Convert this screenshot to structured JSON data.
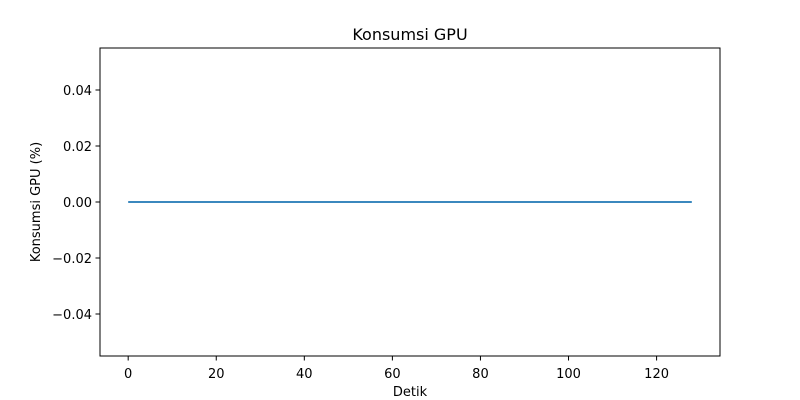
{
  "chart_data": {
    "type": "line",
    "title": "Konsumsi GPU",
    "xlabel": "Detik",
    "ylabel": "Konsumsi GPU (%)",
    "xlim": [
      -6.4,
      134.4
    ],
    "ylim": [
      -0.055,
      0.055
    ],
    "xticks": [
      0,
      20,
      40,
      60,
      80,
      100,
      120
    ],
    "yticks": [
      -0.04,
      -0.02,
      0.0,
      0.02,
      0.04
    ],
    "ytick_labels": [
      "−0.04",
      "−0.02",
      "0.00",
      "0.02",
      "0.04"
    ],
    "grid": false,
    "series": [
      {
        "color": "#1f77b4",
        "x": [
          0,
          128
        ],
        "y": [
          0,
          0
        ]
      }
    ]
  }
}
